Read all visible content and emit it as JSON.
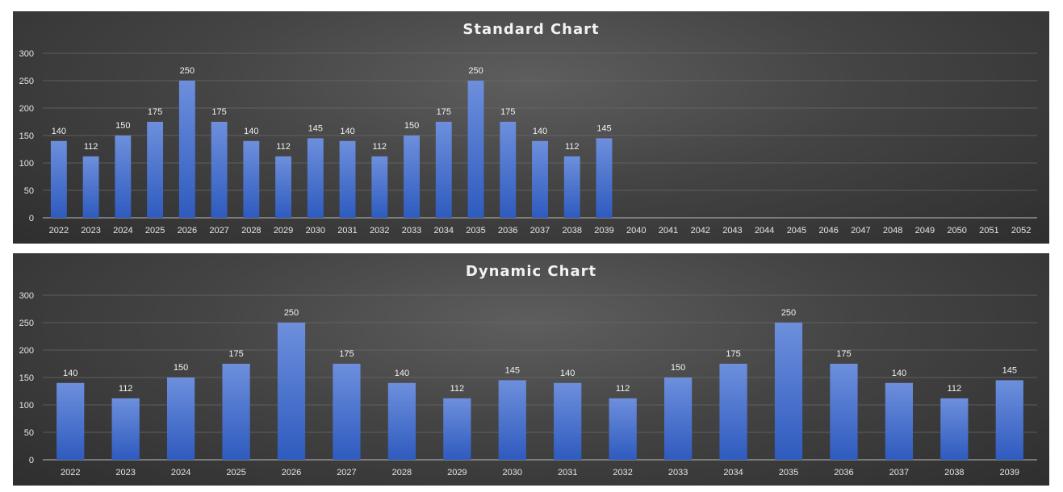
{
  "chart_data": [
    {
      "type": "bar",
      "title": "Standard Chart",
      "categories": [
        "2022",
        "2023",
        "2024",
        "2025",
        "2026",
        "2027",
        "2028",
        "2029",
        "2030",
        "2031",
        "2032",
        "2033",
        "2034",
        "2035",
        "2036",
        "2037",
        "2038",
        "2039",
        "2040",
        "2041",
        "2042",
        "2043",
        "2044",
        "2045",
        "2046",
        "2047",
        "2048",
        "2049",
        "2050",
        "2051",
        "2052"
      ],
      "values": [
        140,
        112,
        150,
        175,
        250,
        175,
        140,
        112,
        145,
        140,
        112,
        150,
        175,
        250,
        175,
        140,
        112,
        145,
        null,
        null,
        null,
        null,
        null,
        null,
        null,
        null,
        null,
        null,
        null,
        null,
        null
      ],
      "ylim": [
        0,
        300
      ],
      "yticks": [
        0,
        50,
        100,
        150,
        200,
        250,
        300
      ],
      "data_labels": true,
      "grid": true,
      "legend": "none",
      "colors": {
        "bar_top": "#6d8fdc",
        "bar_bottom": "#2f5bbf"
      }
    },
    {
      "type": "bar",
      "title": "Dynamic Chart",
      "categories": [
        "2022",
        "2023",
        "2024",
        "2025",
        "2026",
        "2027",
        "2028",
        "2029",
        "2030",
        "2031",
        "2032",
        "2033",
        "2034",
        "2035",
        "2036",
        "2037",
        "2038",
        "2039"
      ],
      "values": [
        140,
        112,
        150,
        175,
        250,
        175,
        140,
        112,
        145,
        140,
        112,
        150,
        175,
        250,
        175,
        140,
        112,
        145
      ],
      "ylim": [
        0,
        300
      ],
      "yticks": [
        0,
        50,
        100,
        150,
        200,
        250,
        300
      ],
      "data_labels": true,
      "grid": true,
      "legend": "none",
      "colors": {
        "bar_top": "#6d8fdc",
        "bar_bottom": "#2f5bbf"
      }
    }
  ]
}
